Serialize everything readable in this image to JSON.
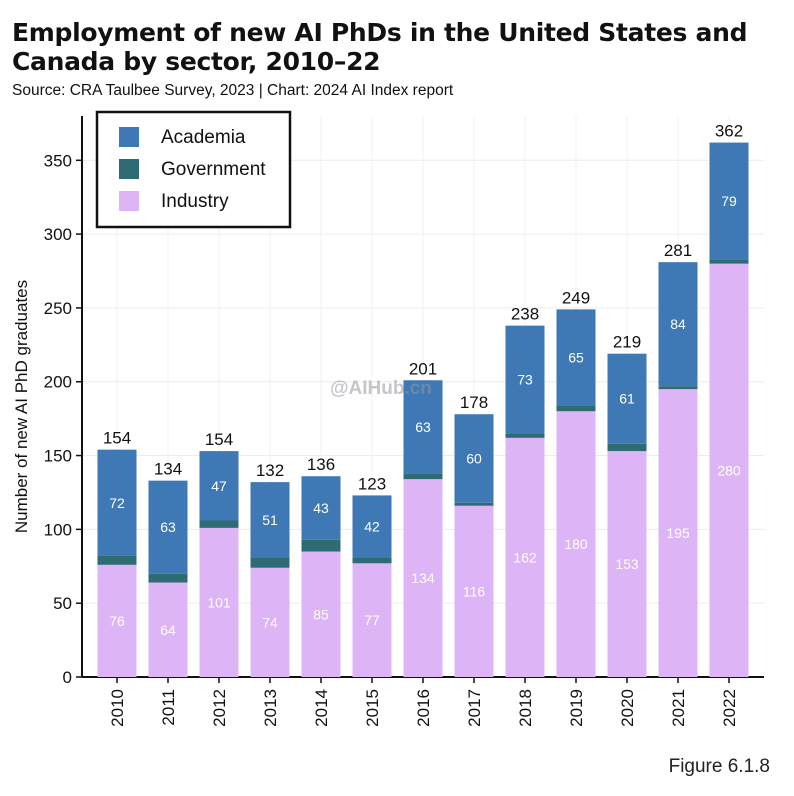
{
  "chart_data": {
    "type": "bar",
    "stacked": true,
    "title": "Employment of new AI PhDs in the United States and Canada by sector, 2010–22",
    "source": "Source: CRA Taulbee Survey, 2023 | Chart: 2024 AI Index report",
    "figure_label": "Figure 6.1.8",
    "xlabel": "",
    "ylabel": "Number of new AI PhD graduates",
    "ylim": [
      0,
      380
    ],
    "yticks": [
      0,
      50,
      100,
      150,
      200,
      250,
      300,
      350
    ],
    "legend_position": "top-left",
    "categories": [
      "2010",
      "2011",
      "2012",
      "2013",
      "2014",
      "2015",
      "2016",
      "2017",
      "2018",
      "2019",
      "2020",
      "2021",
      "2022"
    ],
    "series": [
      {
        "name": "Industry",
        "color": "#DDB4F5",
        "label_color": "#ffffff",
        "values": [
          76,
          64,
          101,
          74,
          85,
          77,
          134,
          116,
          162,
          180,
          153,
          195,
          280
        ]
      },
      {
        "name": "Government",
        "color": "#2F6B72",
        "label_color": "#ffffff",
        "values": [
          6,
          6,
          5,
          7,
          8,
          4,
          4,
          2,
          3,
          4,
          5,
          2,
          3
        ]
      },
      {
        "name": "Academia",
        "color": "#3E79B6",
        "label_color": "#ffffff",
        "values": [
          72,
          63,
          47,
          51,
          43,
          42,
          63,
          60,
          73,
          65,
          61,
          84,
          79
        ]
      }
    ],
    "totals": [
      154,
      134,
      154,
      132,
      136,
      123,
      201,
      178,
      238,
      249,
      219,
      281,
      362
    ],
    "legend_order": [
      "Academia",
      "Government",
      "Industry"
    ]
  },
  "watermark": "@AIHub.cn"
}
